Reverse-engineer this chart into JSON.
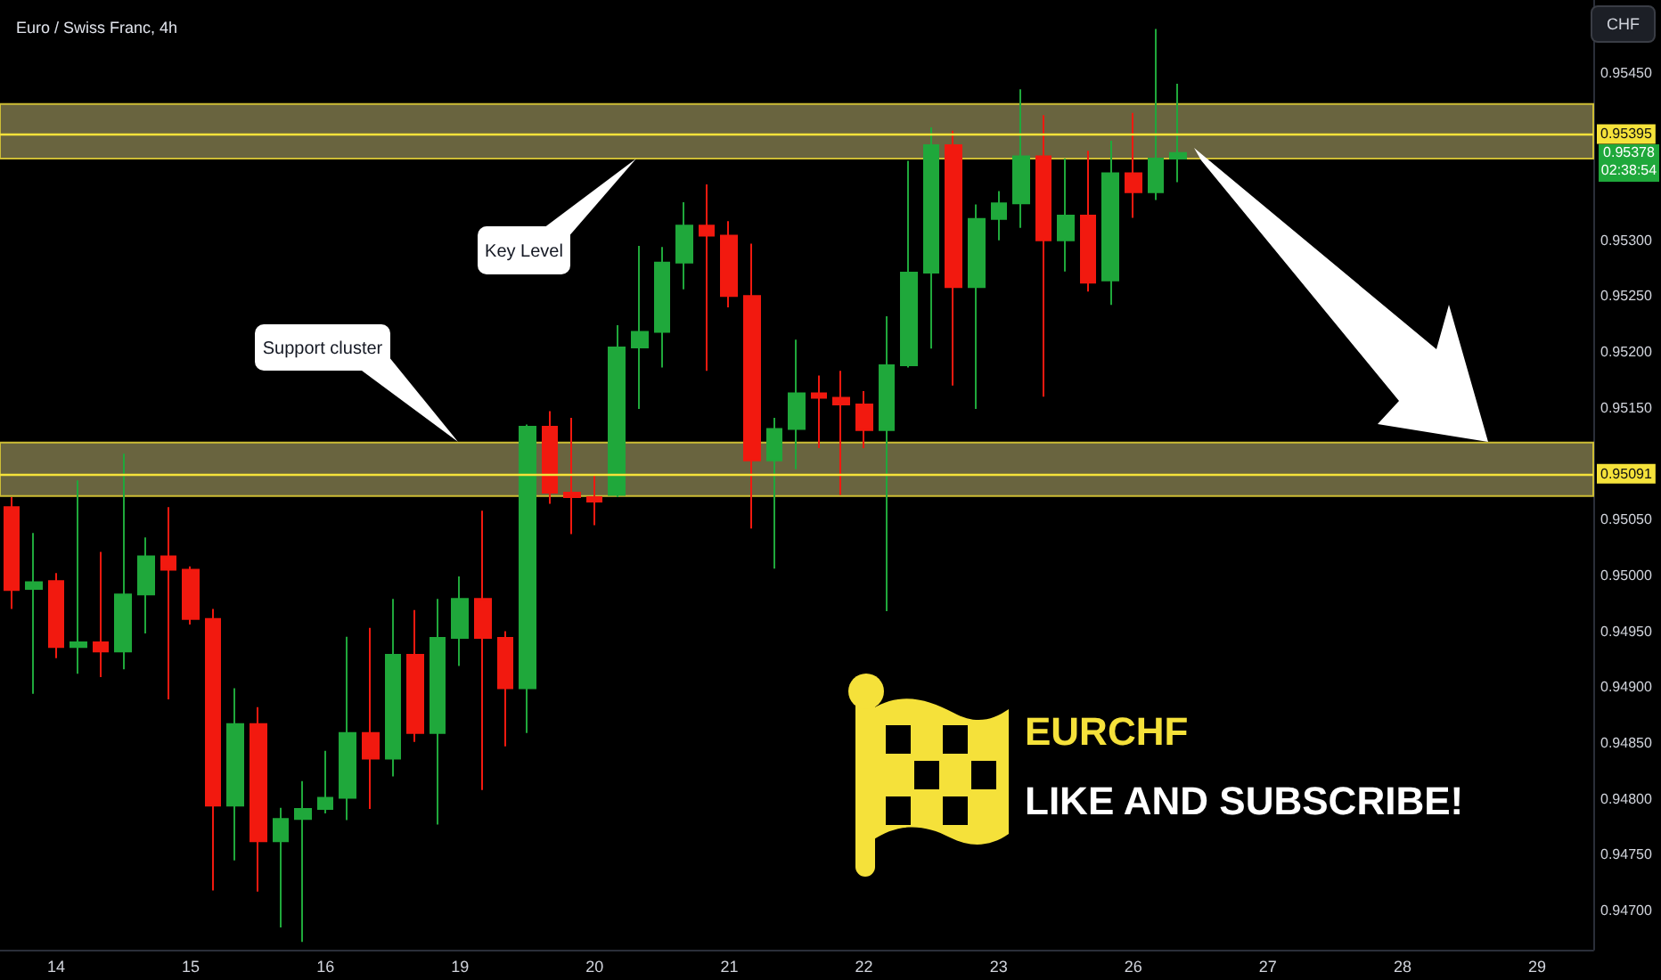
{
  "chart_data": {
    "type": "candlestick",
    "title": "Euro / Swiss Franc, 4h",
    "ylabel": "CHF",
    "categories": [
      null,
      null,
      "14",
      null,
      null,
      null,
      null,
      null,
      "15",
      null,
      null,
      null,
      null,
      null,
      "16",
      null,
      null,
      null,
      null,
      null,
      "19",
      null,
      null,
      null,
      null,
      null,
      "20",
      null,
      null,
      null,
      null,
      null,
      "21",
      null,
      null,
      null,
      null,
      null,
      "22",
      null,
      null,
      null,
      null,
      null,
      "23",
      null,
      null,
      null,
      null,
      null,
      "26",
      null,
      null,
      null,
      null,
      null,
      "27",
      null,
      null,
      null,
      null,
      null,
      "28",
      null,
      null,
      null,
      null,
      null,
      "29",
      null,
      null
    ],
    "ohlc": [
      [
        0.95061,
        0.9507,
        0.9497,
        0.94987
      ],
      [
        0.94988,
        0.95038,
        0.94894,
        0.94994
      ],
      [
        0.94995,
        0.95002,
        0.94926,
        0.94936
      ],
      [
        0.94936,
        0.95085,
        0.94912,
        0.9494
      ],
      [
        0.9494,
        0.95021,
        0.94909,
        0.94932
      ],
      [
        0.94932,
        0.95109,
        0.94916,
        0.94983
      ],
      [
        0.94983,
        0.95034,
        0.94948,
        0.95017
      ],
      [
        0.95017,
        0.95061,
        0.94889,
        0.95005
      ],
      [
        0.95005,
        0.95008,
        0.94956,
        0.94961
      ],
      [
        0.94961,
        0.9497,
        0.94718,
        0.94794
      ],
      [
        0.94794,
        0.94899,
        0.94745,
        0.94867
      ],
      [
        0.94867,
        0.94882,
        0.94717,
        0.94762
      ],
      [
        0.94762,
        0.94792,
        0.94685,
        0.94782
      ],
      [
        0.94782,
        0.94816,
        0.94672,
        0.94791
      ],
      [
        0.94791,
        0.94843,
        0.94787,
        0.94801
      ],
      [
        0.94801,
        0.94945,
        0.94781,
        0.94859
      ],
      [
        0.94859,
        0.94953,
        0.94791,
        0.94836
      ],
      [
        0.94836,
        0.94979,
        0.9482,
        0.94929
      ],
      [
        0.94929,
        0.94969,
        0.94851,
        0.94859
      ],
      [
        0.94859,
        0.94979,
        0.94777,
        0.94944
      ],
      [
        0.94944,
        0.94999,
        0.94919,
        0.94979
      ],
      [
        0.94979,
        0.95058,
        0.94808,
        0.94944
      ],
      [
        0.94944,
        0.9495,
        0.94847,
        0.94899
      ],
      [
        0.94899,
        0.95135,
        0.94859,
        0.95133
      ],
      [
        0.95133,
        0.95147,
        0.95064,
        0.95074
      ],
      [
        0.95074,
        0.95141,
        0.95037,
        0.9507
      ],
      [
        0.9507,
        0.9509,
        0.95045,
        0.95066
      ],
      [
        0.95072,
        0.95224,
        0.9507,
        0.95204
      ],
      [
        0.95204,
        0.95295,
        0.95149,
        0.95218
      ],
      [
        0.95218,
        0.95294,
        0.95186,
        0.9528
      ],
      [
        0.9528,
        0.95334,
        0.95256,
        0.95313
      ],
      [
        0.95313,
        0.9535,
        0.95183,
        0.95304
      ],
      [
        0.95304,
        0.95317,
        0.9524,
        0.9525
      ],
      [
        0.9525,
        0.95297,
        0.95042,
        0.95103
      ],
      [
        0.95103,
        0.95141,
        0.95006,
        0.95131
      ],
      [
        0.95131,
        0.95211,
        0.95095,
        0.95163
      ],
      [
        0.95163,
        0.95179,
        0.95114,
        0.95159
      ],
      [
        0.95159,
        0.95183,
        0.95072,
        0.95153
      ],
      [
        0.95153,
        0.95165,
        0.95114,
        0.9513
      ],
      [
        0.9513,
        0.95232,
        0.94968,
        0.95188
      ],
      [
        0.95188,
        0.95371,
        0.95186,
        0.95271
      ],
      [
        0.95271,
        0.95401,
        0.95203,
        0.95385
      ],
      [
        0.95385,
        0.95398,
        0.9517,
        0.95258
      ],
      [
        0.95258,
        0.95332,
        0.95149,
        0.95319
      ],
      [
        0.95319,
        0.95344,
        0.953,
        0.95333
      ],
      [
        0.95333,
        0.95435,
        0.95311,
        0.95375
      ],
      [
        0.95375,
        0.95412,
        0.9516,
        0.953
      ],
      [
        0.953,
        0.95373,
        0.95272,
        0.95322
      ],
      [
        0.95322,
        0.9538,
        0.95254,
        0.95262
      ],
      [
        0.95264,
        0.95389,
        0.95242,
        0.9536
      ],
      [
        0.9536,
        0.95414,
        0.9532,
        0.95343
      ],
      [
        0.95343,
        0.95489,
        0.95336,
        0.95373
      ],
      [
        0.95373,
        0.9544,
        0.95352,
        0.95378
      ],
      null,
      null,
      null,
      null,
      null,
      null,
      null,
      null,
      null,
      null,
      null,
      null,
      null,
      null,
      null,
      null,
      null,
      null
    ],
    "colors": [
      "#f2190f",
      "#1fa83b",
      "#f2190f",
      "#1fa83b",
      "#f2190f",
      "#1fa83b",
      "#1fa83b",
      "#f2190f",
      "#f2190f",
      "#f2190f",
      "#1fa83b",
      "#f2190f",
      "#1fa83b",
      "#1fa83b",
      "#1fa83b",
      "#1fa83b",
      "#f2190f",
      "#1fa83b",
      "#f2190f",
      "#1fa83b",
      "#1fa83b",
      "#f2190f",
      "#f2190f",
      "#1fa83b",
      "#f2190f",
      "#f2190f",
      "#f2190f",
      "#1fa83b",
      "#1fa83b",
      "#1fa83b",
      "#1fa83b",
      "#f2190f",
      "#f2190f",
      "#f2190f",
      "#1fa83b",
      "#1fa83b",
      "#f2190f",
      "#f2190f",
      "#f2190f",
      "#1fa83b",
      "#1fa83b",
      "#1fa83b",
      "#f2190f",
      "#1fa83b",
      "#1fa83b",
      "#1fa83b",
      "#f2190f",
      "#1fa83b",
      "#f2190f",
      "#1fa83b",
      "#f2190f",
      "#1fa83b",
      "#1fa83b",
      null,
      null,
      null,
      null,
      null,
      null,
      null,
      null,
      null,
      null,
      null,
      null,
      null,
      null,
      null,
      null,
      null,
      null
    ],
    "ylim": [
      0.94665,
      0.95515
    ],
    "yticks": [
      {
        "value": 0.947,
        "label": "0.94700"
      },
      {
        "value": 0.9475,
        "label": "0.94750"
      },
      {
        "value": 0.948,
        "label": "0.94800"
      },
      {
        "value": 0.9485,
        "label": "0.94850"
      },
      {
        "value": 0.949,
        "label": "0.94900"
      },
      {
        "value": 0.9495,
        "label": "0.94950"
      },
      {
        "value": 0.95,
        "label": "0.95000"
      },
      {
        "value": 0.9505,
        "label": "0.95050"
      },
      {
        "value": 0.9515,
        "label": "0.95150"
      },
      {
        "value": 0.952,
        "label": "0.95200"
      },
      {
        "value": 0.9525,
        "label": "0.95250"
      },
      {
        "value": 0.953,
        "label": "0.95300"
      },
      {
        "value": 0.9545,
        "label": "0.95450"
      }
    ],
    "ref_lines": [
      {
        "axis": "y",
        "value": 0.95395,
        "label": "0.95395",
        "color": "#f5e23a"
      },
      {
        "axis": "y",
        "value": 0.95091,
        "label": "0.95091",
        "color": "#f5e23a"
      }
    ],
    "bands": [
      {
        "axis": "y",
        "from": 0.95373,
        "to": 0.95422,
        "color": "#69643f"
      },
      {
        "axis": "y",
        "from": 0.95071,
        "to": 0.95119,
        "color": "#69643f"
      }
    ],
    "annotations": [
      "Key Level",
      "Support cluster",
      "EURCHF",
      "LIKE AND SUBSCRIBE!",
      "0.95378",
      "02:38:54"
    ]
  }
}
